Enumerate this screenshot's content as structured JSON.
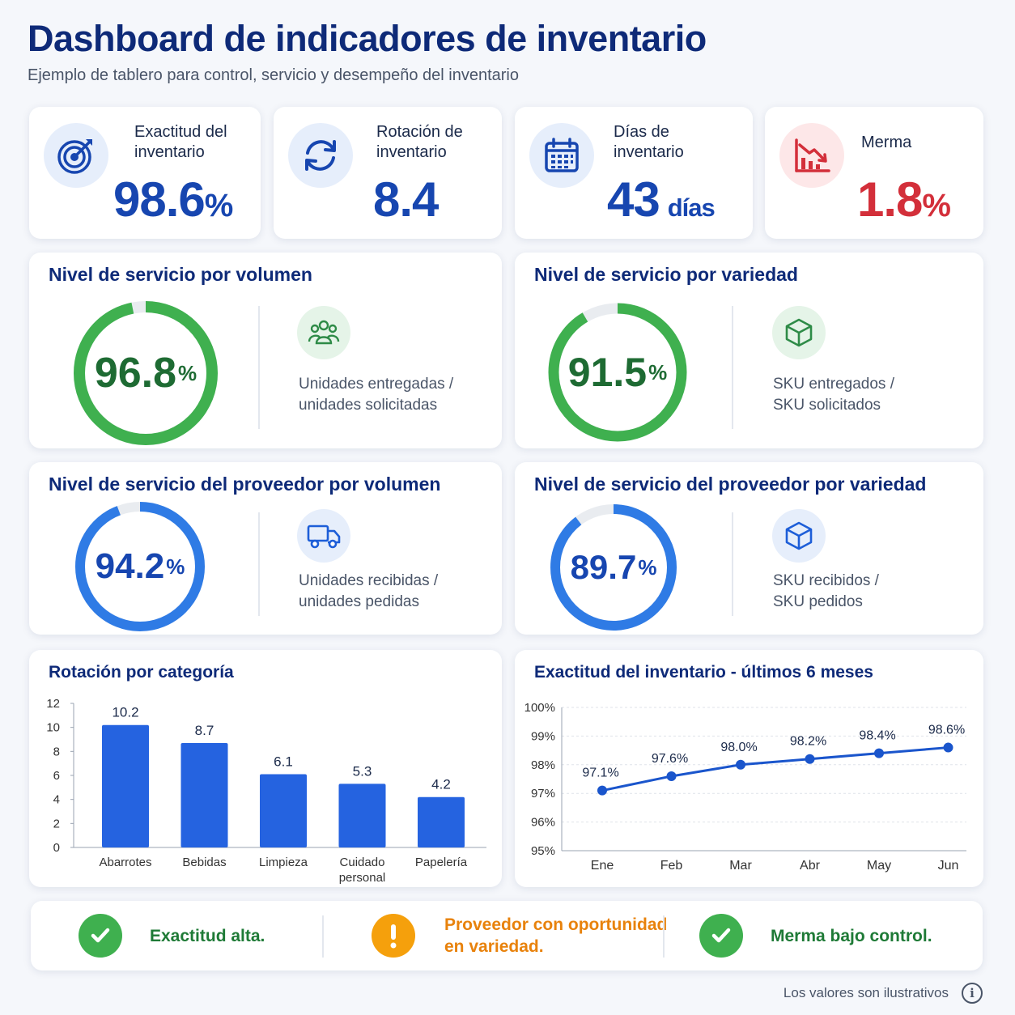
{
  "header": {
    "title": "Dashboard de indicadores de inventario",
    "subtitle": "Ejemplo de tablero para control, servicio y desempeño del inventario"
  },
  "kpis": [
    {
      "icon": "target-icon",
      "label_line1": "Exactitud del",
      "label_line2": "inventario",
      "value": "98.6",
      "unit": "%",
      "color": "#1746b0"
    },
    {
      "icon": "refresh-icon",
      "label_line1": "Rotación de",
      "label_line2": "inventario",
      "value": "8.4",
      "unit": "",
      "color": "#1746b0"
    },
    {
      "icon": "calendar-icon",
      "label_line1": "Días de",
      "label_line2": "inventario",
      "value": "43",
      "unit": "días",
      "color": "#1746b0"
    },
    {
      "icon": "decline-chart-icon",
      "label_line1": "Merma",
      "label_line2": "",
      "value": "1.8",
      "unit": "%",
      "color": "#d32f3a"
    }
  ],
  "service": [
    {
      "title": "Nivel de servicio por volumen",
      "value": "96.8",
      "unit": "%",
      "fraction": 0.968,
      "color": "#3fb04f",
      "text_color": "#1e6b33",
      "icon": "people-icon",
      "desc_line1": "Unidades entregadas /",
      "desc_line2": "unidades solicitadas"
    },
    {
      "title": "Nivel de servicio por variedad",
      "value": "91.5",
      "unit": "%",
      "fraction": 0.915,
      "color": "#3fb04f",
      "text_color": "#1e6b33",
      "icon": "box-icon",
      "desc_line1": "SKU entregados /",
      "desc_line2": "SKU solicitados"
    },
    {
      "title": "Nivel de servicio del proveedor por volumen",
      "value": "94.2",
      "unit": "%",
      "fraction": 0.942,
      "color": "#2f7be5",
      "text_color": "#1746b0",
      "icon": "truck-icon",
      "desc_line1": "Unidades recibidas /",
      "desc_line2": "unidades pedidas"
    },
    {
      "title": "Nivel de servicio del proveedor por variedad",
      "value": "89.7",
      "unit": "%",
      "fraction": 0.897,
      "color": "#2f7be5",
      "text_color": "#1746b0",
      "icon": "box-icon",
      "desc_line1": "SKU recibidos /",
      "desc_line2": "SKU pedidos"
    }
  ],
  "chart_data": [
    {
      "type": "bar",
      "title": "Rotación por categoría",
      "categories": [
        "Abarrotes",
        "Bebidas",
        "Limpieza",
        "Cuidado personal",
        "Papelería"
      ],
      "category_lines": [
        [
          "Abarrotes"
        ],
        [
          "Bebidas"
        ],
        [
          "Limpieza"
        ],
        [
          "Cuidado",
          "personal"
        ],
        [
          "Papelería"
        ]
      ],
      "values": [
        10.2,
        8.7,
        6.1,
        5.3,
        4.2
      ],
      "value_labels": [
        "10.2",
        "8.7",
        "6.1",
        "5.3",
        "4.2"
      ],
      "ylim": [
        0,
        12
      ],
      "yticks": [
        "0",
        "2",
        "4",
        "6",
        "8",
        "10",
        "12"
      ],
      "color": "#2563e0"
    },
    {
      "type": "line",
      "title": "Exactitud del inventario - últimos 6 meses",
      "x": [
        "Ene",
        "Feb",
        "Mar",
        "Abr",
        "May",
        "Jun"
      ],
      "values": [
        97.1,
        97.6,
        98.0,
        98.2,
        98.4,
        98.6
      ],
      "value_labels": [
        "97.1%",
        "97.6%",
        "98.0%",
        "98.2%",
        "98.4%",
        "98.6%"
      ],
      "ylim": [
        95,
        100
      ],
      "yticks": [
        "95%",
        "96%",
        "97%",
        "98%",
        "99%",
        "100%"
      ],
      "grid": true,
      "color": "#1a55cc"
    }
  ],
  "status": [
    {
      "icon": "check-icon",
      "text_line1": "Exactitud alta.",
      "text_line2": "",
      "color": "#3fb04f",
      "text_color": "#1e7a36"
    },
    {
      "icon": "exclamation-icon",
      "text_line1": "Proveedor con oportunidad",
      "text_line2": "en variedad.",
      "color": "#f5a00c",
      "text_color": "#e8820c"
    },
    {
      "icon": "check-icon",
      "text_line1": "Merma bajo control.",
      "text_line2": "",
      "color": "#3fb04f",
      "text_color": "#1e7a36"
    }
  ],
  "footer": {
    "note": "Los valores son ilustrativos",
    "icon": "info-icon",
    "icon_glyph": "i"
  }
}
